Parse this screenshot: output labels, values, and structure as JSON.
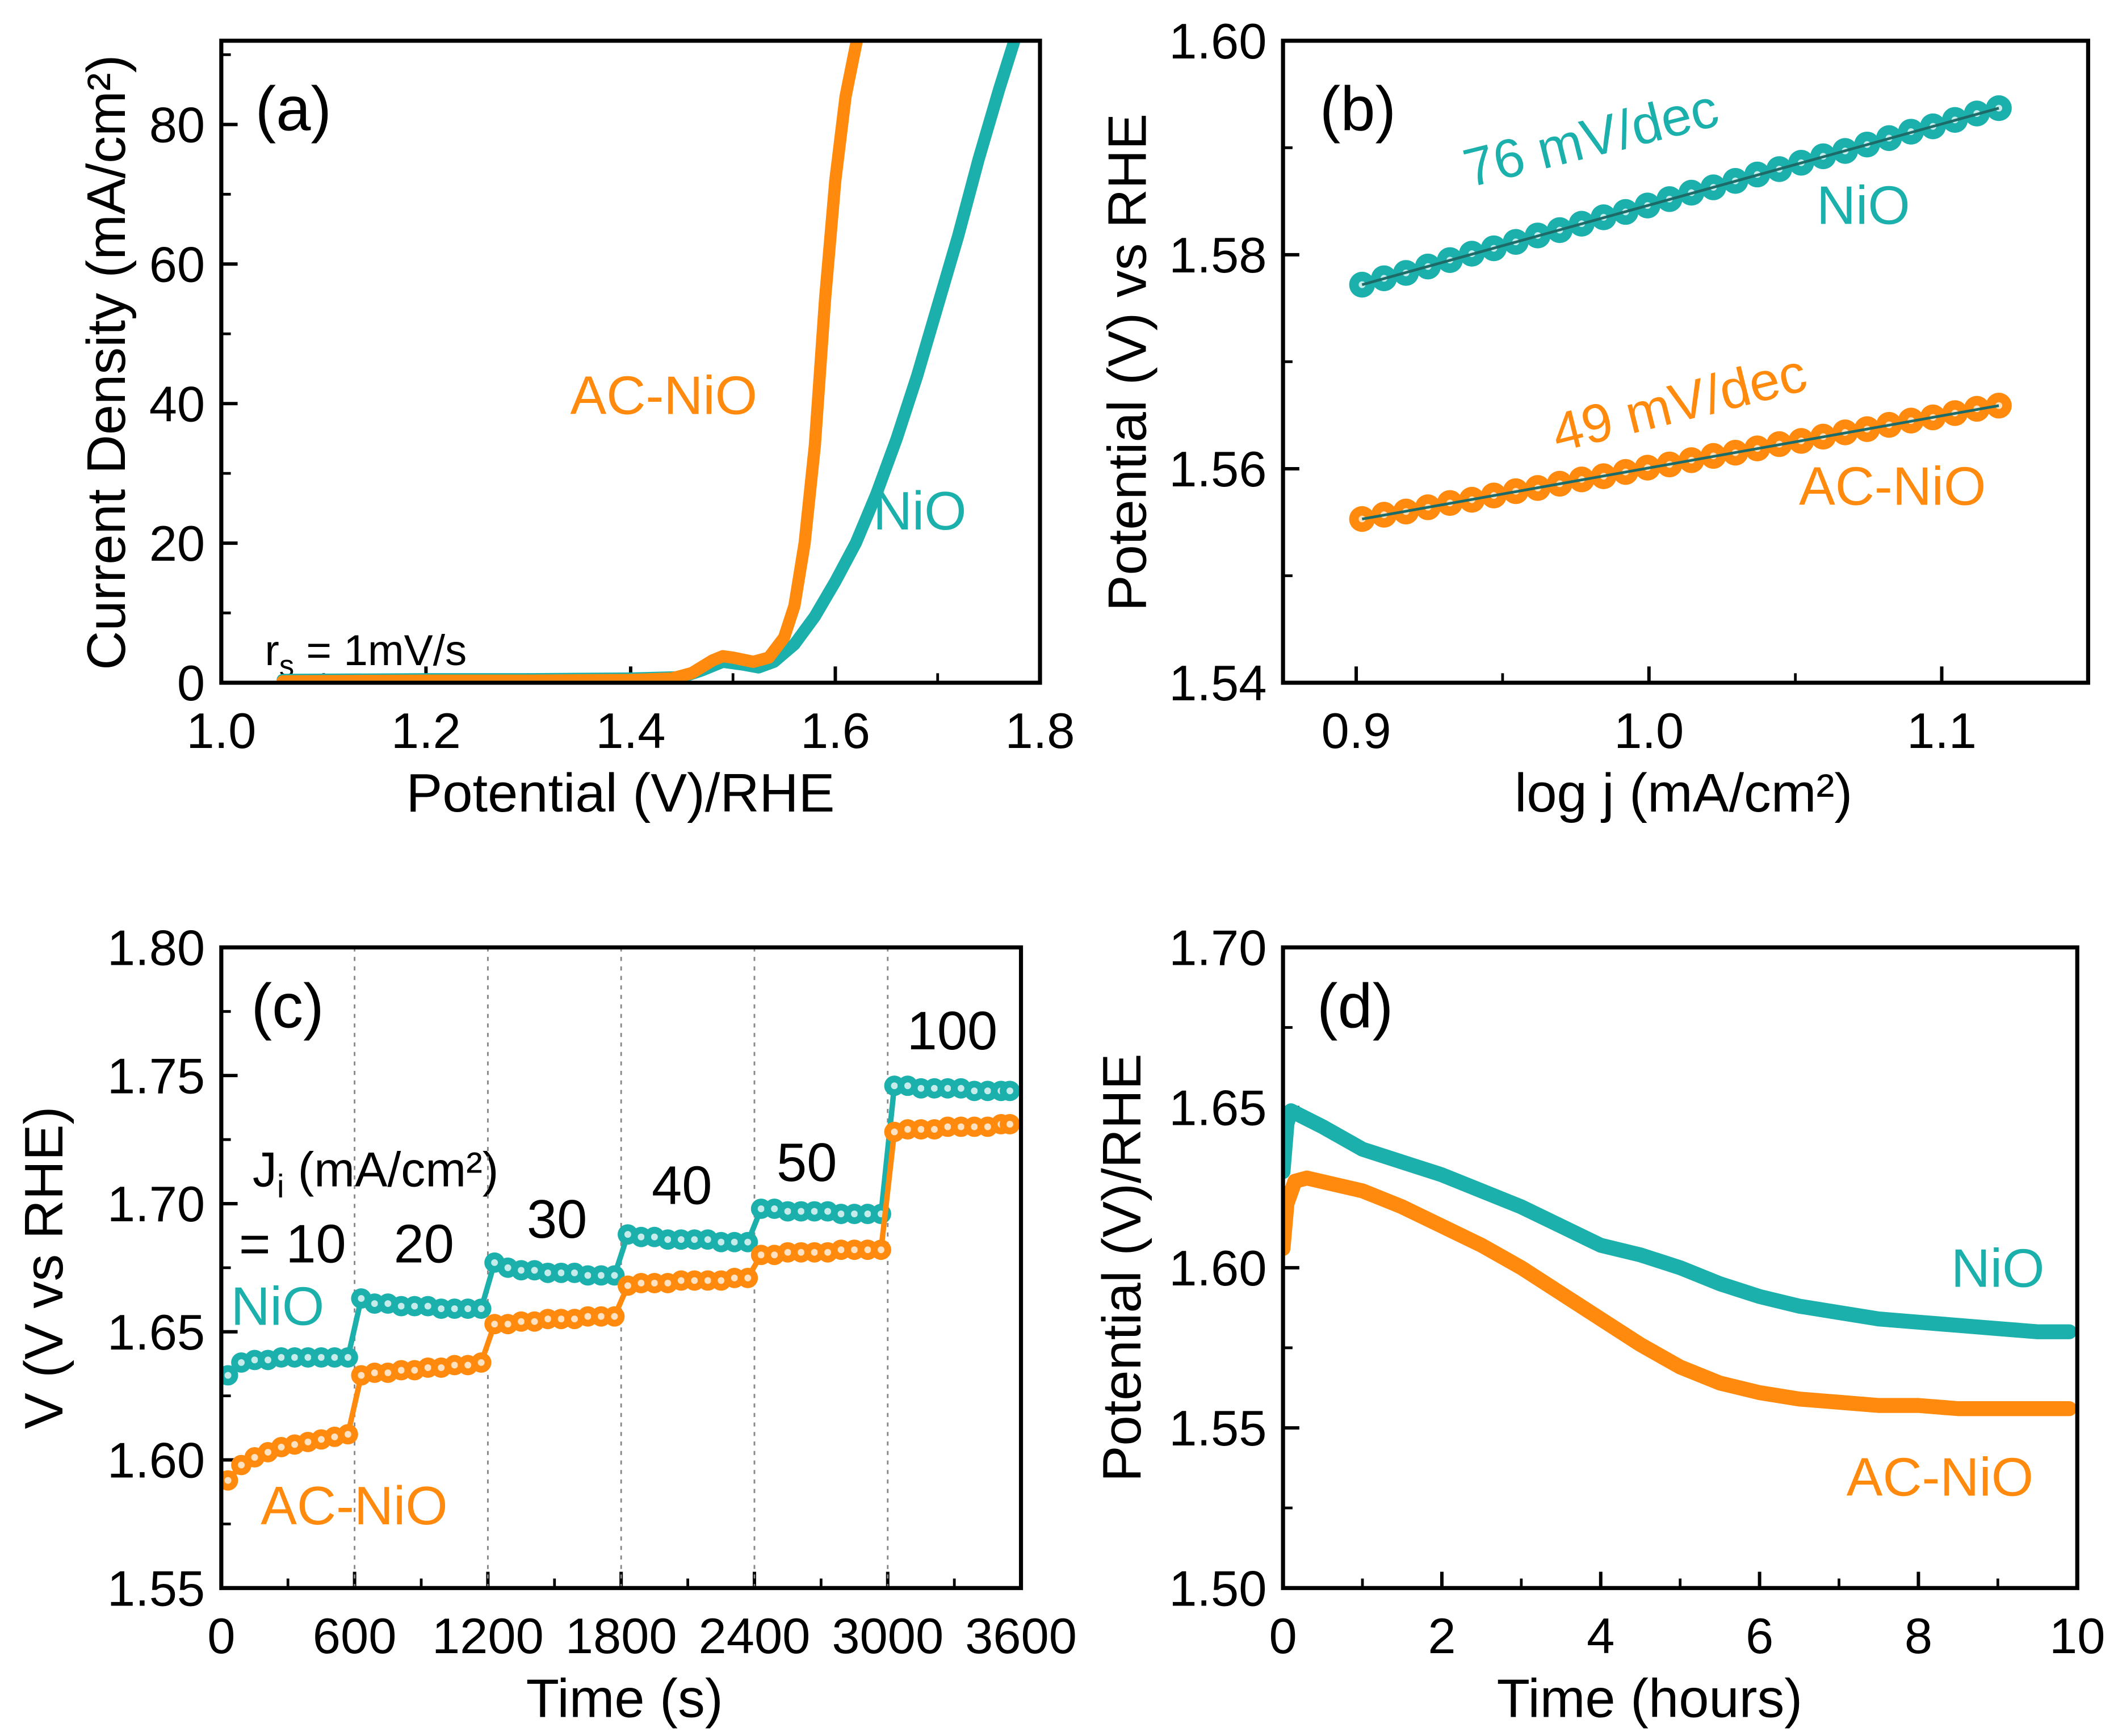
{
  "colors": {
    "NiO": "#1bb0ab",
    "AC-NiO": "#ff8a0d",
    "fit": "#1d6b68",
    "axis": "#000000",
    "gridline": "#888888"
  },
  "chart_data": [
    {
      "panel": "(a)",
      "type": "line",
      "xlabel": "Potential (V)/RHE",
      "ylabel": "Current Density (mA/cm²)",
      "xlim": [
        1.0,
        1.8
      ],
      "ylim": [
        0,
        92
      ],
      "xticks": [
        "1.0",
        "1.2",
        "1.4",
        "1.6",
        "1.8"
      ],
      "yticks": [
        "0",
        "20",
        "40",
        "60",
        "80"
      ],
      "annotation": {
        "main": "r",
        "sub": "s",
        "rest": " = 1mV/s"
      },
      "series": [
        {
          "name": "NiO",
          "color": "#1bb0ab",
          "x": [
            1.06,
            1.2,
            1.3,
            1.4,
            1.45,
            1.47,
            1.49,
            1.51,
            1.525,
            1.54,
            1.56,
            1.58,
            1.6,
            1.62,
            1.64,
            1.66,
            1.68,
            1.7,
            1.72,
            1.74,
            1.76,
            1.775
          ],
          "y": [
            0.4,
            0.5,
            0.5,
            0.6,
            0.8,
            1.8,
            3.0,
            2.6,
            2.2,
            3.0,
            5.5,
            9.5,
            14.5,
            20,
            27,
            35,
            44,
            54,
            64,
            75,
            85,
            92
          ]
        },
        {
          "name": "AC-NiO",
          "color": "#ff8a0d",
          "x": [
            1.06,
            1.2,
            1.3,
            1.4,
            1.44,
            1.46,
            1.48,
            1.49,
            1.5,
            1.52,
            1.535,
            1.55,
            1.56,
            1.57,
            1.58,
            1.59,
            1.6,
            1.61,
            1.621
          ],
          "y": [
            0.2,
            0.3,
            0.3,
            0.4,
            0.6,
            1.4,
            3.2,
            3.8,
            3.6,
            3.0,
            3.6,
            6.5,
            11,
            20,
            34,
            55,
            72,
            84,
            92
          ]
        }
      ],
      "labels": {
        "panel": "(a)",
        "ac": "AC-NiO",
        "nio": "NiO"
      }
    },
    {
      "panel": "(b)",
      "type": "scatter",
      "xlabel": "log j (mA/cm²)",
      "ylabel": "Potential (V) vs RHE",
      "xlim": [
        0.875,
        1.15
      ],
      "ylim": [
        1.54,
        1.6
      ],
      "xticks": [
        "0.9",
        "1.0",
        "1.1"
      ],
      "yticks": [
        "1.54",
        "1.56",
        "1.58",
        "1.60"
      ],
      "x": [
        0.902,
        0.9095,
        0.917,
        0.9245,
        0.932,
        0.9395,
        0.947,
        0.9545,
        0.962,
        0.9695,
        0.977,
        0.9845,
        0.992,
        0.9995,
        1.007,
        1.0145,
        1.022,
        1.0295,
        1.037,
        1.0445,
        1.052,
        1.0595,
        1.067,
        1.0745,
        1.082,
        1.0895,
        1.097,
        1.1045,
        1.112,
        1.1195
      ],
      "series": [
        {
          "name": "NiO",
          "color": "#1bb0ab",
          "slope_label": "76 mV/dec",
          "y": [
            1.5772,
            1.5778,
            1.5783,
            1.5789,
            1.5795,
            1.5801,
            1.5806,
            1.5812,
            1.5818,
            1.5823,
            1.5829,
            1.5835,
            1.584,
            1.5846,
            1.5852,
            1.5858,
            1.5863,
            1.5869,
            1.5875,
            1.588,
            1.5886,
            1.5892,
            1.5897,
            1.5903,
            1.5909,
            1.5915,
            1.592,
            1.5926,
            1.5932,
            1.5937
          ]
        },
        {
          "name": "AC-NiO",
          "color": "#ff8a0d",
          "slope_label": "49 mV/dec",
          "y": [
            1.5553,
            1.5557,
            1.556,
            1.5564,
            1.5568,
            1.5571,
            1.5575,
            1.5579,
            1.5582,
            1.5586,
            1.559,
            1.5593,
            1.5597,
            1.5601,
            1.5604,
            1.5608,
            1.5612,
            1.5615,
            1.5619,
            1.5623,
            1.5626,
            1.563,
            1.5634,
            1.5637,
            1.5641,
            1.5645,
            1.5648,
            1.5652,
            1.5656,
            1.5659
          ]
        }
      ],
      "labels": {
        "panel": "(b)",
        "nio_slope": "76 mV/dec",
        "ac_slope": "49 mV/dec",
        "nio": "NiO",
        "ac": "AC-NiO"
      }
    },
    {
      "panel": "(c)",
      "type": "scatter",
      "xlabel": "Time (s)",
      "ylabel": "V (V vs RHE)",
      "xlim": [
        0,
        3600
      ],
      "ylim": [
        1.55,
        1.8
      ],
      "xticks": [
        "0",
        "600",
        "1200",
        "1800",
        "2400",
        "3000",
        "3600"
      ],
      "yticks": [
        "1.55",
        "1.60",
        "1.65",
        "1.70",
        "1.75",
        "1.80"
      ],
      "step_boundaries": [
        600,
        1200,
        1800,
        2400,
        3000
      ],
      "x": [
        30,
        90,
        150,
        210,
        270,
        330,
        390,
        450,
        510,
        570,
        630,
        690,
        750,
        810,
        870,
        930,
        990,
        1050,
        1110,
        1170,
        1230,
        1290,
        1350,
        1410,
        1470,
        1530,
        1590,
        1650,
        1710,
        1770,
        1830,
        1890,
        1950,
        2010,
        2070,
        2130,
        2190,
        2250,
        2310,
        2370,
        2430,
        2490,
        2550,
        2610,
        2670,
        2730,
        2790,
        2850,
        2910,
        2970,
        3030,
        3090,
        3150,
        3210,
        3270,
        3330,
        3390,
        3450,
        3510,
        3550
      ],
      "series": [
        {
          "name": "NiO",
          "color": "#1bb0ab",
          "y": [
            1.633,
            1.638,
            1.639,
            1.639,
            1.64,
            1.64,
            1.64,
            1.64,
            1.64,
            1.64,
            1.663,
            1.661,
            1.661,
            1.66,
            1.66,
            1.66,
            1.659,
            1.659,
            1.659,
            1.659,
            1.677,
            1.675,
            1.674,
            1.674,
            1.673,
            1.673,
            1.673,
            1.672,
            1.672,
            1.672,
            1.688,
            1.687,
            1.687,
            1.686,
            1.686,
            1.686,
            1.686,
            1.685,
            1.685,
            1.685,
            1.698,
            1.698,
            1.697,
            1.697,
            1.697,
            1.697,
            1.696,
            1.696,
            1.696,
            1.696,
            1.746,
            1.746,
            1.745,
            1.745,
            1.745,
            1.745,
            1.744,
            1.744,
            1.744,
            1.744
          ]
        },
        {
          "name": "AC-NiO",
          "color": "#ff8a0d",
          "y": [
            1.592,
            1.598,
            1.601,
            1.603,
            1.605,
            1.606,
            1.607,
            1.608,
            1.609,
            1.61,
            1.633,
            1.634,
            1.634,
            1.635,
            1.635,
            1.636,
            1.636,
            1.637,
            1.637,
            1.638,
            1.653,
            1.653,
            1.654,
            1.654,
            1.655,
            1.655,
            1.655,
            1.656,
            1.656,
            1.656,
            1.668,
            1.669,
            1.669,
            1.669,
            1.67,
            1.67,
            1.67,
            1.67,
            1.671,
            1.671,
            1.68,
            1.68,
            1.681,
            1.681,
            1.681,
            1.681,
            1.682,
            1.682,
            1.682,
            1.682,
            1.728,
            1.729,
            1.729,
            1.729,
            1.73,
            1.73,
            1.73,
            1.73,
            1.731,
            1.731
          ]
        }
      ],
      "labels": {
        "panel": "(c)",
        "ji_main": "J",
        "ji_sub": "i",
        "ji_rest": " (mA/cm²)",
        "eq10": "= 10",
        "l20": "20",
        "l30": "30",
        "l40": "40",
        "l50": "50",
        "l100": "100",
        "nio": "NiO",
        "ac": "AC-NiO"
      }
    },
    {
      "panel": "(d)",
      "type": "line",
      "xlabel": "Time (hours)",
      "ylabel": "Potential (V)/RHE",
      "xlim": [
        0,
        10
      ],
      "ylim": [
        1.5,
        1.7
      ],
      "xticks": [
        "0",
        "2",
        "4",
        "6",
        "8",
        "10"
      ],
      "yticks": [
        "1.50",
        "1.55",
        "1.60",
        "1.65",
        "1.70"
      ],
      "series": [
        {
          "name": "NiO",
          "color": "#1bb0ab",
          "x": [
            0.0,
            0.05,
            0.1,
            0.5,
            1,
            1.5,
            2,
            2.5,
            3,
            3.5,
            4,
            4.5,
            5,
            5.5,
            6,
            6.5,
            7,
            7.5,
            8,
            8.5,
            9,
            9.5,
            9.9
          ],
          "y": [
            1.63,
            1.645,
            1.649,
            1.644,
            1.637,
            1.633,
            1.629,
            1.624,
            1.619,
            1.613,
            1.607,
            1.604,
            1.6,
            1.595,
            1.591,
            1.588,
            1.586,
            1.584,
            1.583,
            1.582,
            1.581,
            1.58,
            1.58
          ]
        },
        {
          "name": "AC-NiO",
          "color": "#ff8a0d",
          "x": [
            0.0,
            0.05,
            0.15,
            0.3,
            1,
            1.5,
            2,
            2.5,
            3,
            3.5,
            4,
            4.5,
            5,
            5.5,
            6,
            6.5,
            7,
            7.5,
            8,
            8.5,
            9,
            9.5,
            9.9
          ],
          "y": [
            1.606,
            1.62,
            1.627,
            1.628,
            1.624,
            1.619,
            1.613,
            1.607,
            1.6,
            1.592,
            1.584,
            1.576,
            1.569,
            1.564,
            1.561,
            1.559,
            1.558,
            1.557,
            1.557,
            1.556,
            1.556,
            1.556,
            1.556
          ]
        }
      ],
      "labels": {
        "panel": "(d)",
        "nio": "NiO",
        "ac": "AC-NiO"
      }
    }
  ]
}
